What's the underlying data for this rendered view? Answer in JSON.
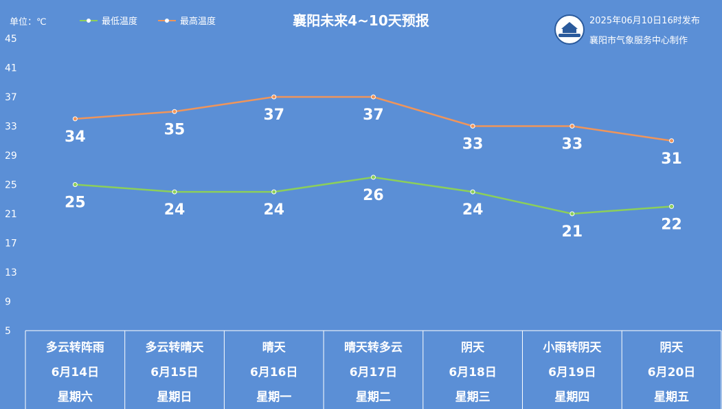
{
  "header": {
    "unit_label": "单位：℃",
    "title": "襄阳未来4~10天预报",
    "published": "2025年06月10日16时发布",
    "maker": "襄阳市气象服务中心制作"
  },
  "colors": {
    "background": "#5b8fd6",
    "low_line": "#8ccf5a",
    "high_line": "#f0955a",
    "text": "#ffffff"
  },
  "chart_data": {
    "type": "line",
    "title": "襄阳未来4~10天预报",
    "ylabel": "单位：℃",
    "ylim": [
      5,
      45
    ],
    "yticks": [
      "45",
      "41",
      "37",
      "33",
      "29",
      "25",
      "21",
      "17",
      "13",
      "9",
      "5"
    ],
    "legend": "top-left",
    "grid": false,
    "categories": [
      "6月14日",
      "6月15日",
      "6月16日",
      "6月17日",
      "6月18日",
      "6月19日",
      "6月20日"
    ],
    "series": [
      {
        "name": "最低温度",
        "values": [
          25,
          24,
          24,
          26,
          24,
          21,
          22
        ]
      },
      {
        "name": "最高温度",
        "values": [
          34,
          35,
          37,
          37,
          33,
          33,
          31
        ]
      }
    ]
  },
  "days": [
    {
      "weather": "多云转阵雨",
      "date": "6月14日",
      "weekday": "星期六"
    },
    {
      "weather": "多云转晴天",
      "date": "6月15日",
      "weekday": "星期日"
    },
    {
      "weather": "晴天",
      "date": "6月16日",
      "weekday": "星期一"
    },
    {
      "weather": "晴天转多云",
      "date": "6月17日",
      "weekday": "星期二"
    },
    {
      "weather": "阴天",
      "date": "6月18日",
      "weekday": "星期三"
    },
    {
      "weather": "小雨转阴天",
      "date": "6月19日",
      "weekday": "星期四"
    },
    {
      "weather": "阴天",
      "date": "6月20日",
      "weekday": "星期五"
    }
  ]
}
